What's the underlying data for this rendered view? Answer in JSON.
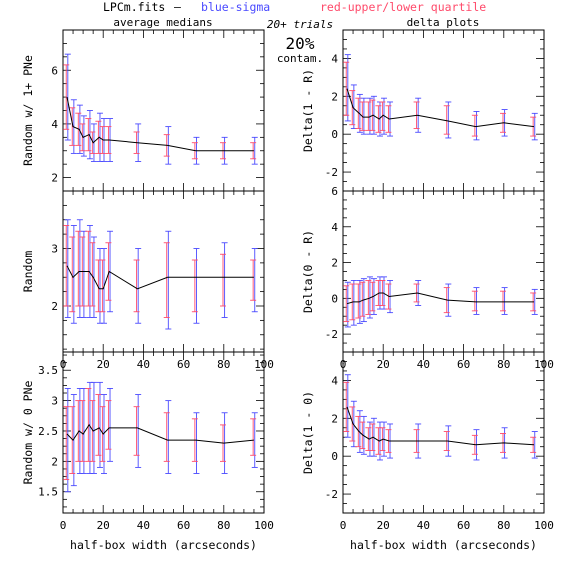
{
  "header": {
    "file_label": "LPCm.fits",
    "dash": "–",
    "blue_legend": "blue-sigma",
    "red_legend": "red-upper/lower quartile",
    "left_column_title": "average medians",
    "right_column_title": "delta plots",
    "trials": "20+ trials",
    "contam_percent": "20%",
    "contam_word": "contam."
  },
  "colors": {
    "axis": "#000000",
    "median_line": "#000000",
    "sigma": "#4a4aff",
    "quartile": "#ff4a6a"
  },
  "chart_data": [
    {
      "id": "tl",
      "type": "line",
      "ylabel": "Random w/ 1+ PNe",
      "xlabel": "",
      "xlim": [
        0,
        100
      ],
      "ylim": [
        1.5,
        7.5
      ],
      "xticks": [],
      "yticks": [
        2,
        4,
        6
      ],
      "x": [
        2,
        5,
        8,
        10,
        13,
        15,
        18,
        20,
        23,
        37,
        52,
        66,
        80,
        95
      ],
      "series": [
        {
          "values": [
            5.0,
            3.9,
            3.8,
            3.5,
            3.6,
            3.3,
            3.5,
            3.4,
            3.4,
            3.3,
            3.2,
            3.0,
            3.0,
            3.0
          ],
          "sigma": [
            [
              3.4,
              6.6
            ],
            [
              2.9,
              4.9
            ],
            [
              2.9,
              4.7
            ],
            [
              2.8,
              4.3
            ],
            [
              2.7,
              4.5
            ],
            [
              2.6,
              4.0
            ],
            [
              2.6,
              4.4
            ],
            [
              2.6,
              4.2
            ],
            [
              2.6,
              4.2
            ],
            [
              2.6,
              4.0
            ],
            [
              2.5,
              3.9
            ],
            [
              2.5,
              3.5
            ],
            [
              2.5,
              3.5
            ],
            [
              2.5,
              3.5
            ]
          ],
          "quartile": [
            [
              3.8,
              6.2
            ],
            [
              3.2,
              4.6
            ],
            [
              3.2,
              4.4
            ],
            [
              3.0,
              4.0
            ],
            [
              3.0,
              4.2
            ],
            [
              2.9,
              3.7
            ],
            [
              2.9,
              4.1
            ],
            [
              2.9,
              3.9
            ],
            [
              2.9,
              3.9
            ],
            [
              2.9,
              3.7
            ],
            [
              2.8,
              3.6
            ],
            [
              2.7,
              3.3
            ],
            [
              2.7,
              3.3
            ],
            [
              2.7,
              3.3
            ]
          ]
        }
      ]
    },
    {
      "id": "tr",
      "type": "line",
      "ylabel": "Delta(1 - R)",
      "xlabel": "",
      "xlim": [
        0,
        100
      ],
      "ylim": [
        -3,
        5.5
      ],
      "xticks": [],
      "yticks": [
        -2,
        0,
        2,
        4
      ],
      "x": [
        2,
        5,
        8,
        10,
        13,
        15,
        18,
        20,
        23,
        37,
        52,
        66,
        80,
        95
      ],
      "series": [
        {
          "values": [
            2.4,
            1.4,
            1.1,
            0.9,
            0.9,
            1.0,
            0.8,
            1.0,
            0.8,
            1.0,
            0.7,
            0.4,
            0.6,
            0.4
          ],
          "sigma": [
            [
              0.7,
              4.2
            ],
            [
              0.3,
              2.6
            ],
            [
              0.1,
              2.1
            ],
            [
              0.0,
              1.9
            ],
            [
              0.0,
              1.9
            ],
            [
              0.0,
              2.0
            ],
            [
              -0.1,
              1.7
            ],
            [
              0.0,
              1.9
            ],
            [
              -0.1,
              1.7
            ],
            [
              0.1,
              1.9
            ],
            [
              -0.2,
              1.7
            ],
            [
              -0.3,
              1.2
            ],
            [
              -0.1,
              1.3
            ],
            [
              -0.3,
              1.1
            ]
          ],
          "quartile": [
            [
              1.0,
              3.8
            ],
            [
              0.5,
              2.3
            ],
            [
              0.3,
              1.9
            ],
            [
              0.2,
              1.7
            ],
            [
              0.2,
              1.7
            ],
            [
              0.2,
              1.8
            ],
            [
              0.1,
              1.5
            ],
            [
              0.2,
              1.7
            ],
            [
              0.1,
              1.5
            ],
            [
              0.3,
              1.7
            ],
            [
              0.0,
              1.5
            ],
            [
              -0.1,
              1.0
            ],
            [
              0.1,
              1.1
            ],
            [
              -0.1,
              0.9
            ]
          ]
        }
      ]
    },
    {
      "id": "ml",
      "type": "line",
      "ylabel": "Random",
      "xlabel": "",
      "xlim": [
        0,
        100
      ],
      "ylim": [
        1.2,
        4.0
      ],
      "xticks": [
        0,
        20,
        40,
        60,
        80,
        100
      ],
      "yticks": [
        2,
        3
      ],
      "x": [
        2,
        5,
        8,
        10,
        13,
        15,
        18,
        20,
        23,
        37,
        52,
        66,
        80,
        95
      ],
      "series": [
        {
          "values": [
            2.7,
            2.5,
            2.6,
            2.6,
            2.6,
            2.5,
            2.3,
            2.3,
            2.6,
            2.3,
            2.5,
            2.5,
            2.5,
            2.5
          ],
          "sigma": [
            [
              1.8,
              3.5
            ],
            [
              1.7,
              3.4
            ],
            [
              1.8,
              3.5
            ],
            [
              1.8,
              3.3
            ],
            [
              1.8,
              3.4
            ],
            [
              1.8,
              3.2
            ],
            [
              1.7,
              3.0
            ],
            [
              1.7,
              3.0
            ],
            [
              1.9,
              3.3
            ],
            [
              1.7,
              3.0
            ],
            [
              1.6,
              3.3
            ],
            [
              1.7,
              3.0
            ],
            [
              1.8,
              3.1
            ],
            [
              1.9,
              3.0
            ]
          ],
          "quartile": [
            [
              2.0,
              3.4
            ],
            [
              1.9,
              3.2
            ],
            [
              2.0,
              3.3
            ],
            [
              2.0,
              3.2
            ],
            [
              2.0,
              3.3
            ],
            [
              2.0,
              3.1
            ],
            [
              1.9,
              2.8
            ],
            [
              1.9,
              2.8
            ],
            [
              2.1,
              3.1
            ],
            [
              1.9,
              2.8
            ],
            [
              1.8,
              3.1
            ],
            [
              1.9,
              2.8
            ],
            [
              2.0,
              2.9
            ],
            [
              2.1,
              2.8
            ]
          ]
        }
      ]
    },
    {
      "id": "mr",
      "type": "line",
      "ylabel": "Delta(0 - R)",
      "xlabel": "",
      "xlim": [
        0,
        100
      ],
      "ylim": [
        -3,
        6
      ],
      "xticks": [
        0,
        20,
        40,
        60,
        80,
        100
      ],
      "yticks": [
        -2,
        0,
        2,
        4,
        6
      ],
      "x": [
        2,
        5,
        8,
        10,
        13,
        15,
        18,
        20,
        23,
        37,
        52,
        66,
        80,
        95
      ],
      "series": [
        {
          "values": [
            -0.3,
            -0.2,
            -0.2,
            -0.1,
            0.0,
            0.1,
            0.3,
            0.3,
            0.1,
            0.3,
            -0.1,
            -0.2,
            -0.2,
            -0.2
          ],
          "sigma": [
            [
              -1.6,
              0.9
            ],
            [
              -1.5,
              1.0
            ],
            [
              -1.4,
              1.0
            ],
            [
              -1.3,
              1.1
            ],
            [
              -1.1,
              1.2
            ],
            [
              -0.9,
              1.1
            ],
            [
              -0.6,
              1.2
            ],
            [
              -0.6,
              1.2
            ],
            [
              -0.8,
              1.0
            ],
            [
              -0.4,
              1.0
            ],
            [
              -1.0,
              0.8
            ],
            [
              -0.9,
              0.6
            ],
            [
              -0.9,
              0.6
            ],
            [
              -0.9,
              0.5
            ]
          ],
          "quartile": [
            [
              -1.3,
              0.7
            ],
            [
              -1.2,
              0.8
            ],
            [
              -1.1,
              0.8
            ],
            [
              -1.0,
              0.9
            ],
            [
              -0.9,
              1.0
            ],
            [
              -0.7,
              0.9
            ],
            [
              -0.4,
              1.0
            ],
            [
              -0.4,
              1.0
            ],
            [
              -0.6,
              0.8
            ],
            [
              -0.2,
              0.8
            ],
            [
              -0.8,
              0.6
            ],
            [
              -0.7,
              0.4
            ],
            [
              -0.7,
              0.4
            ],
            [
              -0.7,
              0.3
            ]
          ]
        }
      ]
    },
    {
      "id": "bl",
      "type": "line",
      "ylabel": "Random w/ 0 PNe",
      "xlabel": "half-box width (arcseconds)",
      "xlim": [
        0,
        100
      ],
      "ylim": [
        1.15,
        3.8
      ],
      "xticks": [
        0,
        20,
        40,
        60,
        80,
        100
      ],
      "yticks": [
        1.5,
        2,
        2.5,
        3,
        3.5
      ],
      "x": [
        2,
        5,
        8,
        10,
        13,
        15,
        18,
        20,
        23,
        37,
        52,
        66,
        80,
        95
      ],
      "series": [
        {
          "values": [
            2.45,
            2.35,
            2.5,
            2.45,
            2.6,
            2.5,
            2.55,
            2.45,
            2.55,
            2.55,
            2.35,
            2.35,
            2.3,
            2.35
          ],
          "sigma": [
            [
              1.5,
              3.2
            ],
            [
              1.6,
              3.1
            ],
            [
              1.8,
              3.2
            ],
            [
              1.8,
              3.2
            ],
            [
              1.8,
              3.3
            ],
            [
              1.8,
              3.3
            ],
            [
              1.9,
              3.3
            ],
            [
              1.8,
              3.1
            ],
            [
              2.0,
              3.2
            ],
            [
              1.9,
              3.1
            ],
            [
              1.8,
              3.0
            ],
            [
              1.8,
              2.8
            ],
            [
              1.8,
              2.8
            ],
            [
              1.9,
              2.8
            ]
          ],
          "quartile": [
            [
              1.7,
              2.9
            ],
            [
              1.8,
              2.9
            ],
            [
              2.0,
              3.0
            ],
            [
              2.0,
              3.0
            ],
            [
              2.0,
              3.2
            ],
            [
              2.0,
              3.0
            ],
            [
              2.1,
              3.1
            ],
            [
              2.0,
              2.9
            ],
            [
              2.2,
              3.0
            ],
            [
              2.1,
              2.9
            ],
            [
              2.0,
              2.8
            ],
            [
              2.0,
              2.7
            ],
            [
              2.0,
              2.6
            ],
            [
              2.1,
              2.7
            ]
          ]
        }
      ]
    },
    {
      "id": "br",
      "type": "line",
      "ylabel": "Delta(1 - 0)",
      "xlabel": "half-box width (arcseconds)",
      "xlim": [
        0,
        100
      ],
      "ylim": [
        -3,
        5.5
      ],
      "xticks": [
        0,
        20,
        40,
        60,
        80,
        100
      ],
      "yticks": [
        -2,
        0,
        2,
        4
      ],
      "x": [
        2,
        5,
        8,
        10,
        13,
        15,
        18,
        20,
        23,
        37,
        52,
        66,
        80,
        95
      ],
      "series": [
        {
          "values": [
            2.6,
            1.7,
            1.3,
            1.1,
            0.9,
            1.0,
            0.8,
            0.9,
            0.8,
            0.8,
            0.8,
            0.6,
            0.7,
            0.6
          ],
          "sigma": [
            [
              1.0,
              4.3
            ],
            [
              0.5,
              2.9
            ],
            [
              0.2,
              2.4
            ],
            [
              0.1,
              2.1
            ],
            [
              0.0,
              1.8
            ],
            [
              0.0,
              2.0
            ],
            [
              -0.2,
              1.8
            ],
            [
              0.0,
              1.8
            ],
            [
              -0.1,
              1.7
            ],
            [
              -0.1,
              1.7
            ],
            [
              0.0,
              1.6
            ],
            [
              -0.2,
              1.4
            ],
            [
              -0.1,
              1.5
            ],
            [
              -0.1,
              1.3
            ]
          ],
          "quartile": [
            [
              1.3,
              3.9
            ],
            [
              0.8,
              2.6
            ],
            [
              0.5,
              2.1
            ],
            [
              0.4,
              1.8
            ],
            [
              0.3,
              1.5
            ],
            [
              0.3,
              1.7
            ],
            [
              0.1,
              1.5
            ],
            [
              0.3,
              1.5
            ],
            [
              0.2,
              1.4
            ],
            [
              0.2,
              1.4
            ],
            [
              0.3,
              1.3
            ],
            [
              0.1,
              1.1
            ],
            [
              0.2,
              1.2
            ],
            [
              0.2,
              1.0
            ]
          ]
        }
      ]
    }
  ]
}
